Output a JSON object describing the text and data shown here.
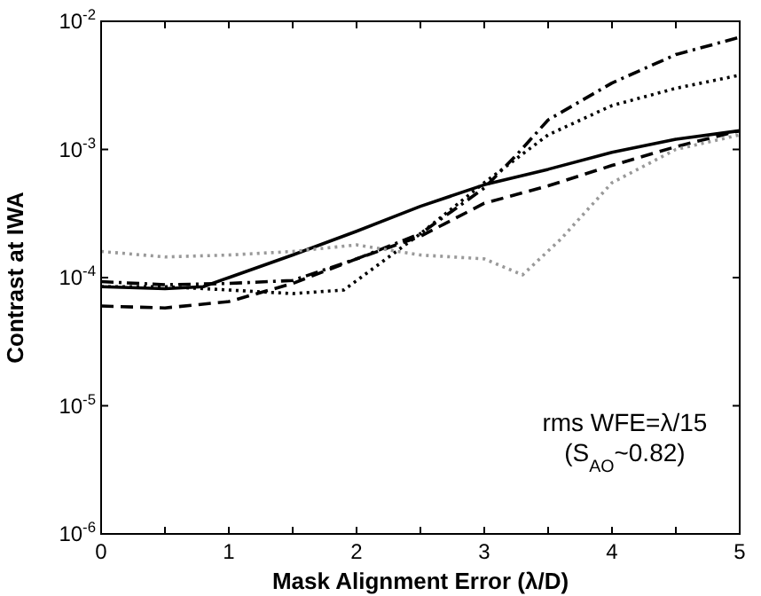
{
  "chart_data": {
    "type": "line",
    "xlabel": "Mask Alignment Error (λ/D)",
    "ylabel": "Contrast at IWA",
    "log": "y",
    "grid": false,
    "marker": "none",
    "xlim": [
      0,
      5
    ],
    "xticks": [
      0,
      {
        "value": 0.5,
        "label": null
      },
      1,
      {
        "value": 1.5,
        "label": null
      },
      2,
      {
        "value": 2.5,
        "label": null
      },
      3,
      {
        "value": 3.5,
        "label": null
      },
      4,
      {
        "value": 4.5,
        "label": null
      },
      5
    ],
    "ylim": [
      1e-06,
      0.01
    ],
    "yticks": [
      {
        "value": 1e-06,
        "label": "10$^{-6}$"
      },
      {
        "value": 1e-05,
        "label": "10$^{-5}$"
      },
      {
        "value": 0.0001,
        "label": "10$^{-4}$"
      },
      {
        "value": 0.001,
        "label": "10$^{-3}$"
      },
      {
        "value": 0.01,
        "label": "10$^{-2}$"
      }
    ],
    "annotations": [
      "rms WFE=λ/15",
      "(S$_{AO}$~0.82)"
    ],
    "series": [
      {
        "color": "#000000",
        "line_style": "solid",
        "x": [
          0,
          0.5,
          0.8,
          1,
          1.5,
          2,
          2.5,
          3,
          3.5,
          4,
          4.5,
          5
        ],
        "values": [
          8.5e-05,
          8.2e-05,
          8.5e-05,
          0.0001,
          0.00015,
          0.00023,
          0.00036,
          0.00053,
          0.0007,
          0.00095,
          0.0012,
          0.0014
        ]
      },
      {
        "color": "#000000",
        "line_style": "dashed",
        "x": [
          0,
          0.5,
          1,
          1.5,
          2,
          2.5,
          3,
          3.5,
          4,
          4.5,
          5
        ],
        "values": [
          6e-05,
          5.8e-05,
          6.5e-05,
          9e-05,
          0.00014,
          0.00021,
          0.00038,
          0.00052,
          0.00075,
          0.00105,
          0.0014
        ]
      },
      {
        "color": "#000000",
        "line_style": "dashdot",
        "x": [
          0,
          0.5,
          1,
          1.5,
          2,
          2.5,
          3,
          3.25,
          3.5,
          4,
          4.5,
          5
        ],
        "values": [
          9.3e-05,
          8.8e-05,
          9e-05,
          9.5e-05,
          0.00014,
          0.00022,
          0.0005,
          0.0009,
          0.0017,
          0.0033,
          0.0055,
          0.0075
        ]
      },
      {
        "color": "#000000",
        "line_style": "dotted",
        "x": [
          0,
          0.5,
          1,
          1.5,
          1.9,
          2.5,
          3,
          3.5,
          4,
          4.5,
          5
        ],
        "values": [
          8.5e-05,
          8.5e-05,
          8e-05,
          7.5e-05,
          8e-05,
          0.00022,
          0.00055,
          0.0013,
          0.0022,
          0.003,
          0.0038
        ]
      },
      {
        "color": "#999999",
        "line_style": "dotted",
        "x": [
          0,
          0.5,
          1,
          1.5,
          2,
          2.5,
          3,
          3.3,
          3.6,
          4,
          4.5,
          5
        ],
        "values": [
          0.00016,
          0.000145,
          0.00015,
          0.00016,
          0.00018,
          0.00015,
          0.00014,
          0.000105,
          0.0002,
          0.00055,
          0.001,
          0.0013
        ]
      }
    ]
  }
}
